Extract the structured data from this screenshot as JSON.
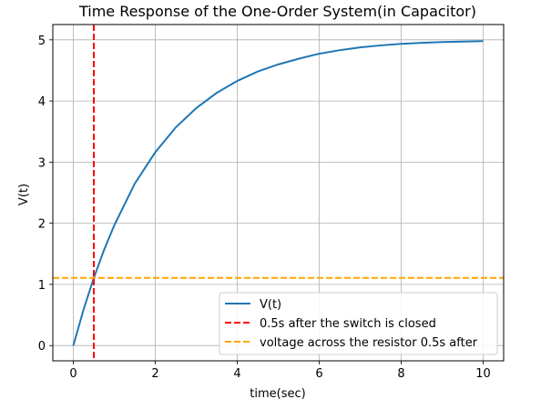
{
  "chart_data": {
    "type": "line",
    "title": "Time Response of the One-Order System(in Capacitor)",
    "xlabel": "time(sec)",
    "ylabel": "V(t)",
    "xlim": [
      -0.5,
      10.5
    ],
    "ylim": [
      -0.25,
      5.25
    ],
    "xticks": [
      0,
      2,
      4,
      6,
      8,
      10
    ],
    "yticks": [
      0,
      1,
      2,
      3,
      4,
      5
    ],
    "grid": true,
    "legend_position": "lower-right",
    "series": [
      {
        "name": "V(t)",
        "kind": "line",
        "color": "#1f77b4",
        "linestyle": "solid",
        "x": [
          0,
          0.25,
          0.5,
          0.75,
          1,
          1.5,
          2,
          2.5,
          3,
          3.5,
          4,
          4.5,
          5,
          5.5,
          6,
          6.5,
          7,
          7.5,
          8,
          8.5,
          9,
          9.5,
          10
        ],
        "y": [
          0,
          0.588,
          1.106,
          1.564,
          1.967,
          2.649,
          3.161,
          3.568,
          3.884,
          4.133,
          4.328,
          4.481,
          4.598,
          4.691,
          4.773,
          4.831,
          4.876,
          4.909,
          4.934,
          4.951,
          4.963,
          4.972,
          4.978
        ]
      },
      {
        "name": "0.5s after the switch is closed",
        "kind": "vline",
        "color": "#ff0000",
        "linestyle": "dashed",
        "x": 0.5
      },
      {
        "name": "voltage across the resistor 0.5s after",
        "kind": "hline",
        "color": "#ffa500",
        "linestyle": "dashed",
        "y": 1.106
      }
    ]
  }
}
